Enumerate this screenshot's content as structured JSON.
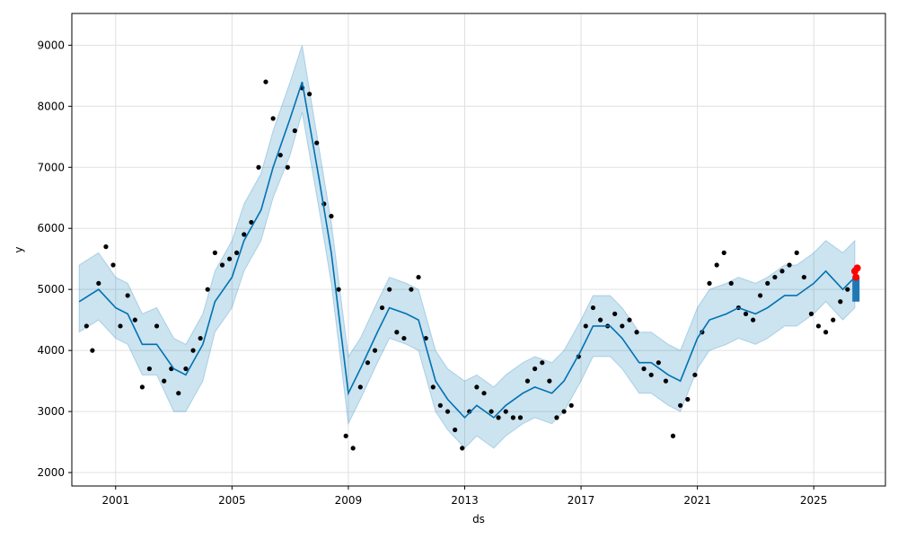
{
  "chart_data": {
    "type": "scatter",
    "title": "",
    "xlabel": "ds",
    "ylabel": "y",
    "xlim": [
      "1999-07-01",
      "2027-06-20"
    ],
    "ylim": [
      1780,
      9520
    ],
    "grid": true,
    "x_ticks": [
      {
        "date": "2001-01-01",
        "label": "2001"
      },
      {
        "date": "2005-01-01",
        "label": "2005"
      },
      {
        "date": "2009-01-01",
        "label": "2009"
      },
      {
        "date": "2013-01-01",
        "label": "2013"
      },
      {
        "date": "2017-01-01",
        "label": "2017"
      },
      {
        "date": "2021-01-01",
        "label": "2021"
      },
      {
        "date": "2025-01-01",
        "label": "2025"
      }
    ],
    "y_ticks": [
      2000,
      3000,
      4000,
      5000,
      6000,
      7000,
      8000,
      9000
    ],
    "series": [
      {
        "kind": "observed",
        "color": "#000000",
        "points": [
          [
            "2000-01-01",
            4400
          ],
          [
            "2000-03-15",
            4000
          ],
          [
            "2000-06-01",
            5100
          ],
          [
            "2000-09-01",
            5700
          ],
          [
            "2000-12-01",
            5400
          ],
          [
            "2001-03-01",
            4400
          ],
          [
            "2001-06-01",
            4900
          ],
          [
            "2001-09-01",
            4500
          ],
          [
            "2001-12-01",
            3400
          ],
          [
            "2002-03-01",
            3700
          ],
          [
            "2002-06-01",
            4400
          ],
          [
            "2002-09-01",
            3500
          ],
          [
            "2002-12-01",
            3700
          ],
          [
            "2003-03-01",
            3300
          ],
          [
            "2003-06-01",
            3700
          ],
          [
            "2003-09-01",
            4000
          ],
          [
            "2003-12-01",
            4200
          ],
          [
            "2004-03-01",
            5000
          ],
          [
            "2004-06-01",
            5600
          ],
          [
            "2004-09-01",
            5400
          ],
          [
            "2004-12-01",
            5500
          ],
          [
            "2005-03-01",
            5600
          ],
          [
            "2005-06-01",
            5900
          ],
          [
            "2005-09-01",
            6100
          ],
          [
            "2005-12-01",
            7000
          ],
          [
            "2006-03-01",
            8400
          ],
          [
            "2006-06-01",
            7800
          ],
          [
            "2006-09-01",
            7200
          ],
          [
            "2006-12-01",
            7000
          ],
          [
            "2007-03-01",
            7600
          ],
          [
            "2007-06-01",
            8300
          ],
          [
            "2007-09-01",
            8200
          ],
          [
            "2007-12-01",
            7400
          ],
          [
            "2008-03-01",
            6400
          ],
          [
            "2008-06-01",
            6200
          ],
          [
            "2008-09-01",
            5000
          ],
          [
            "2008-12-01",
            2600
          ],
          [
            "2009-03-01",
            2400
          ],
          [
            "2009-06-01",
            3400
          ],
          [
            "2009-09-01",
            3800
          ],
          [
            "2009-12-01",
            4000
          ],
          [
            "2010-03-01",
            4700
          ],
          [
            "2010-06-01",
            5000
          ],
          [
            "2010-09-01",
            4300
          ],
          [
            "2010-12-01",
            4200
          ],
          [
            "2011-03-01",
            5000
          ],
          [
            "2011-06-01",
            5200
          ],
          [
            "2011-09-01",
            4200
          ],
          [
            "2011-12-01",
            3400
          ],
          [
            "2012-03-01",
            3100
          ],
          [
            "2012-06-01",
            3000
          ],
          [
            "2012-09-01",
            2700
          ],
          [
            "2012-12-01",
            2400
          ],
          [
            "2013-03-01",
            3000
          ],
          [
            "2013-06-01",
            3400
          ],
          [
            "2013-09-01",
            3300
          ],
          [
            "2013-12-01",
            3000
          ],
          [
            "2014-03-01",
            2900
          ],
          [
            "2014-06-01",
            3000
          ],
          [
            "2014-09-01",
            2900
          ],
          [
            "2014-12-01",
            2900
          ],
          [
            "2015-03-01",
            3500
          ],
          [
            "2015-06-01",
            3700
          ],
          [
            "2015-09-01",
            3800
          ],
          [
            "2015-12-01",
            3500
          ],
          [
            "2016-03-01",
            2900
          ],
          [
            "2016-06-01",
            3000
          ],
          [
            "2016-09-01",
            3100
          ],
          [
            "2016-12-01",
            3900
          ],
          [
            "2017-03-01",
            4400
          ],
          [
            "2017-06-01",
            4700
          ],
          [
            "2017-09-01",
            4500
          ],
          [
            "2017-12-01",
            4400
          ],
          [
            "2018-03-01",
            4600
          ],
          [
            "2018-06-01",
            4400
          ],
          [
            "2018-09-01",
            4500
          ],
          [
            "2018-12-01",
            4300
          ],
          [
            "2019-03-01",
            3700
          ],
          [
            "2019-06-01",
            3600
          ],
          [
            "2019-09-01",
            3800
          ],
          [
            "2019-12-01",
            3500
          ],
          [
            "2020-03-01",
            2600
          ],
          [
            "2020-06-01",
            3100
          ],
          [
            "2020-09-01",
            3200
          ],
          [
            "2020-12-01",
            3600
          ],
          [
            "2021-03-01",
            4300
          ],
          [
            "2021-06-01",
            5100
          ],
          [
            "2021-09-01",
            5400
          ],
          [
            "2021-12-01",
            5600
          ],
          [
            "2022-03-01",
            5100
          ],
          [
            "2022-06-01",
            4700
          ],
          [
            "2022-09-01",
            4600
          ],
          [
            "2022-12-01",
            4500
          ],
          [
            "2023-03-01",
            4900
          ],
          [
            "2023-06-01",
            5100
          ],
          [
            "2023-09-01",
            5200
          ],
          [
            "2023-12-01",
            5300
          ],
          [
            "2024-03-01",
            5400
          ],
          [
            "2024-06-01",
            5600
          ],
          [
            "2024-09-01",
            5200
          ],
          [
            "2024-12-01",
            4600
          ],
          [
            "2025-03-01",
            4400
          ],
          [
            "2025-06-01",
            4300
          ],
          [
            "2025-09-01",
            4500
          ],
          [
            "2025-12-01",
            4800
          ],
          [
            "2026-03-01",
            5000
          ]
        ]
      },
      {
        "kind": "forecast",
        "color": "#0072B2",
        "points": [
          [
            "1999-10-01",
            4800
          ],
          [
            "2000-06-01",
            5000
          ],
          [
            "2001-01-01",
            4700
          ],
          [
            "2001-06-01",
            4600
          ],
          [
            "2001-12-01",
            4100
          ],
          [
            "2002-06-01",
            4100
          ],
          [
            "2003-01-01",
            3700
          ],
          [
            "2003-06-01",
            3600
          ],
          [
            "2004-01-01",
            4100
          ],
          [
            "2004-06-01",
            4800
          ],
          [
            "2005-01-01",
            5200
          ],
          [
            "2005-06-01",
            5800
          ],
          [
            "2006-01-01",
            6300
          ],
          [
            "2006-06-01",
            7000
          ],
          [
            "2007-01-01",
            7800
          ],
          [
            "2007-06-01",
            8400
          ],
          [
            "2008-01-01",
            6800
          ],
          [
            "2008-06-01",
            5600
          ],
          [
            "2009-01-01",
            3300
          ],
          [
            "2009-06-01",
            3700
          ],
          [
            "2010-01-01",
            4300
          ],
          [
            "2010-06-01",
            4700
          ],
          [
            "2011-01-01",
            4600
          ],
          [
            "2011-06-01",
            4500
          ],
          [
            "2012-01-01",
            3500
          ],
          [
            "2012-06-01",
            3200
          ],
          [
            "2013-01-01",
            2900
          ],
          [
            "2013-06-01",
            3100
          ],
          [
            "2014-01-01",
            2900
          ],
          [
            "2014-06-01",
            3100
          ],
          [
            "2015-01-01",
            3300
          ],
          [
            "2015-06-01",
            3400
          ],
          [
            "2016-01-01",
            3300
          ],
          [
            "2016-06-01",
            3500
          ],
          [
            "2017-01-01",
            4000
          ],
          [
            "2017-06-01",
            4400
          ],
          [
            "2018-01-01",
            4400
          ],
          [
            "2018-06-01",
            4200
          ],
          [
            "2019-01-01",
            3800
          ],
          [
            "2019-06-01",
            3800
          ],
          [
            "2020-01-01",
            3600
          ],
          [
            "2020-06-01",
            3500
          ],
          [
            "2021-01-01",
            4200
          ],
          [
            "2021-06-01",
            4500
          ],
          [
            "2022-01-01",
            4600
          ],
          [
            "2022-06-01",
            4700
          ],
          [
            "2023-01-01",
            4600
          ],
          [
            "2023-06-01",
            4700
          ],
          [
            "2024-01-01",
            4900
          ],
          [
            "2024-06-01",
            4900
          ],
          [
            "2025-01-01",
            5100
          ],
          [
            "2025-06-01",
            5300
          ],
          [
            "2026-01-01",
            5000
          ],
          [
            "2026-06-01",
            5200
          ]
        ]
      },
      {
        "kind": "uncertainty_interval",
        "color": "#0072B2",
        "points": [
          [
            "1999-10-01",
            4300,
            5400
          ],
          [
            "2000-06-01",
            4500,
            5600
          ],
          [
            "2001-01-01",
            4200,
            5200
          ],
          [
            "2001-06-01",
            4100,
            5100
          ],
          [
            "2001-12-01",
            3600,
            4600
          ],
          [
            "2002-06-01",
            3600,
            4700
          ],
          [
            "2003-01-01",
            3000,
            4200
          ],
          [
            "2003-06-01",
            3000,
            4100
          ],
          [
            "2004-01-01",
            3500,
            4600
          ],
          [
            "2004-06-01",
            4300,
            5300
          ],
          [
            "2005-01-01",
            4700,
            5800
          ],
          [
            "2005-06-01",
            5300,
            6400
          ],
          [
            "2006-01-01",
            5800,
            6900
          ],
          [
            "2006-06-01",
            6500,
            7600
          ],
          [
            "2007-01-01",
            7200,
            8400
          ],
          [
            "2007-06-01",
            7900,
            9000
          ],
          [
            "2008-01-01",
            6300,
            7300
          ],
          [
            "2008-06-01",
            5100,
            6100
          ],
          [
            "2009-01-01",
            2800,
            3900
          ],
          [
            "2009-06-01",
            3200,
            4200
          ],
          [
            "2010-01-01",
            3800,
            4800
          ],
          [
            "2010-06-01",
            4200,
            5200
          ],
          [
            "2011-01-01",
            4100,
            5100
          ],
          [
            "2011-06-01",
            4000,
            5000
          ],
          [
            "2012-01-01",
            3000,
            4000
          ],
          [
            "2012-06-01",
            2700,
            3700
          ],
          [
            "2013-01-01",
            2400,
            3500
          ],
          [
            "2013-06-01",
            2600,
            3600
          ],
          [
            "2014-01-01",
            2400,
            3400
          ],
          [
            "2014-06-01",
            2600,
            3600
          ],
          [
            "2015-01-01",
            2800,
            3800
          ],
          [
            "2015-06-01",
            2900,
            3900
          ],
          [
            "2016-01-01",
            2800,
            3800
          ],
          [
            "2016-06-01",
            3000,
            4000
          ],
          [
            "2017-01-01",
            3500,
            4500
          ],
          [
            "2017-06-01",
            3900,
            4900
          ],
          [
            "2018-01-01",
            3900,
            4900
          ],
          [
            "2018-06-01",
            3700,
            4700
          ],
          [
            "2019-01-01",
            3300,
            4300
          ],
          [
            "2019-06-01",
            3300,
            4300
          ],
          [
            "2020-01-01",
            3100,
            4100
          ],
          [
            "2020-06-01",
            3000,
            4000
          ],
          [
            "2021-01-01",
            3700,
            4700
          ],
          [
            "2021-06-01",
            4000,
            5000
          ],
          [
            "2022-01-01",
            4100,
            5100
          ],
          [
            "2022-06-01",
            4200,
            5200
          ],
          [
            "2023-01-01",
            4100,
            5100
          ],
          [
            "2023-06-01",
            4200,
            5200
          ],
          [
            "2024-01-01",
            4400,
            5400
          ],
          [
            "2024-06-01",
            4400,
            5400
          ],
          [
            "2025-01-01",
            4600,
            5600
          ],
          [
            "2025-06-01",
            4800,
            5800
          ],
          [
            "2026-01-01",
            4500,
            5600
          ],
          [
            "2026-06-01",
            4700,
            5800
          ]
        ]
      },
      {
        "kind": "highlighted_recent",
        "color": "#FF0000",
        "points": [
          [
            "2026-06-01",
            5300
          ],
          [
            "2026-06-15",
            5200
          ],
          [
            "2026-07-01",
            5350
          ]
        ]
      },
      {
        "kind": "forecast_end_marker",
        "color": "#1F77B4",
        "points": [
          [
            "2026-06-15",
            4800,
            5200
          ]
        ]
      }
    ]
  }
}
